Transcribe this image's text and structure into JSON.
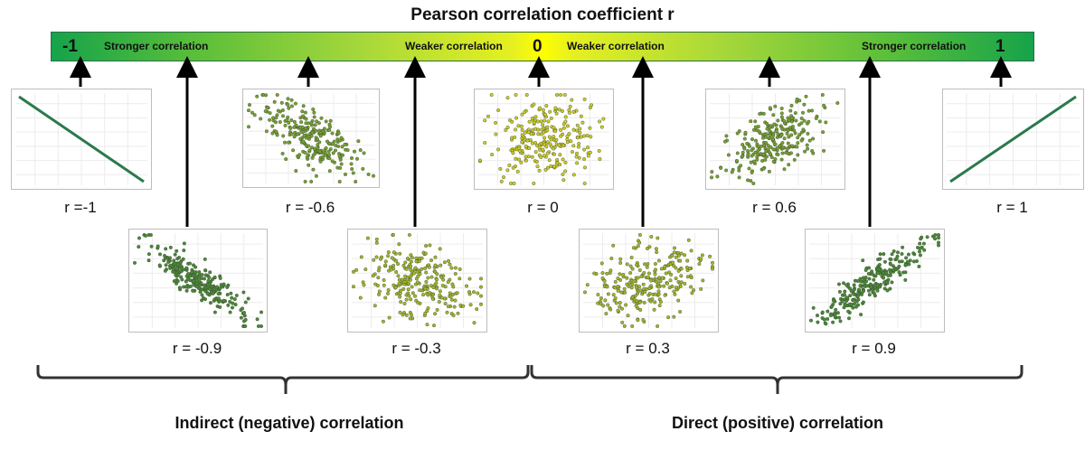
{
  "title": "Pearson correlation coefficient r",
  "scale": {
    "min_label": "-1",
    "mid_label": "0",
    "max_label": "1",
    "left_strong": "Stronger correlation",
    "left_weak": "Weaker correlation",
    "right_weak": "Weaker correlation",
    "right_strong": "Stronger correlation",
    "colors": {
      "strong": "#16a34a",
      "weak": "#ffff00"
    }
  },
  "panels": [
    {
      "label": "r =-1",
      "r": -1
    },
    {
      "label": "r = -0.9",
      "r": -0.9
    },
    {
      "label": "r = -0.6",
      "r": -0.6
    },
    {
      "label": "r = -0.3",
      "r": -0.3
    },
    {
      "label": "r = 0",
      "r": 0
    },
    {
      "label": "r = 0.3",
      "r": 0.3
    },
    {
      "label": "r = 0.6",
      "r": 0.6
    },
    {
      "label": "r = 0.9",
      "r": 0.9
    },
    {
      "label": "r = 1",
      "r": 1
    }
  ],
  "groups": {
    "negative": "Indirect (negative) correlation",
    "positive": "Direct (positive) correlation"
  }
}
